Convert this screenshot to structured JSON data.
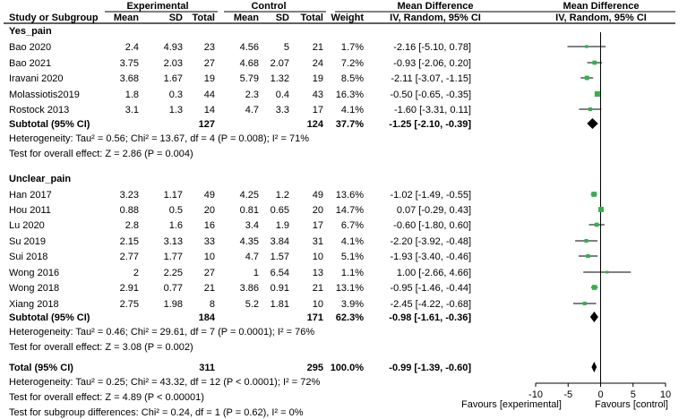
{
  "header": {
    "group1": "Experimental",
    "group2": "Control",
    "md_title": "Mean Difference",
    "md_title2": "Mean Difference",
    "cols": {
      "study": "Study or Subgroup",
      "mean1": "Mean",
      "sd1": "SD",
      "total1": "Total",
      "mean2": "Mean",
      "sd2": "SD",
      "total2": "Total",
      "weight": "Weight",
      "method1": "IV, Random, 95% CI",
      "method2": "IV, Random, 95% CI"
    }
  },
  "subgroups": [
    {
      "name": "Yes_pain",
      "studies": [
        {
          "study": "Bao 2020",
          "m1": "2.4",
          "sd1": "4.93",
          "n1": "23",
          "m2": "4.56",
          "sd2": "5",
          "n2": "21",
          "weight": "1.7%",
          "ci": "-2.16 [-5.10, 0.78]"
        },
        {
          "study": "Bao 2021",
          "m1": "3.75",
          "sd1": "2.03",
          "n1": "27",
          "m2": "4.68",
          "sd2": "2.07",
          "n2": "24",
          "weight": "7.2%",
          "ci": "-0.93 [-2.06, 0.20]"
        },
        {
          "study": "Iravani 2020",
          "m1": "3.68",
          "sd1": "1.67",
          "n1": "19",
          "m2": "5.79",
          "sd2": "1.32",
          "n2": "19",
          "weight": "8.5%",
          "ci": "-2.11 [-3.07, -1.15]"
        },
        {
          "study": "Molassiotis2019",
          "m1": "1.8",
          "sd1": "0.3",
          "n1": "44",
          "m2": "2.3",
          "sd2": "0.4",
          "n2": "43",
          "weight": "16.3%",
          "ci": "-0.50 [-0.65, -0.35]"
        },
        {
          "study": "Rostock 2013",
          "m1": "3.1",
          "sd1": "1.3",
          "n1": "14",
          "m2": "4.7",
          "sd2": "3.3",
          "n2": "17",
          "weight": "4.1%",
          "ci": "-1.60 [-3.31, 0.11]"
        }
      ],
      "subtotal": {
        "label": "Subtotal (95% CI)",
        "n1": "127",
        "n2": "124",
        "weight": "37.7%",
        "ci": "-1.25 [-2.10, -0.39]"
      },
      "heterogeneity": "Heterogeneity: Tau² = 0.56; Chi² = 13.67, df = 4 (P = 0.008); I² = 71%",
      "overall": "Test for overall effect: Z = 2.86 (P = 0.004)"
    },
    {
      "name": "Unclear_pain",
      "studies": [
        {
          "study": "Han 2017",
          "m1": "3.23",
          "sd1": "1.17",
          "n1": "49",
          "m2": "4.25",
          "sd2": "1.2",
          "n2": "49",
          "weight": "13.6%",
          "ci": "-1.02 [-1.49, -0.55]"
        },
        {
          "study": "Hou 2011",
          "m1": "0.88",
          "sd1": "0.5",
          "n1": "20",
          "m2": "0.81",
          "sd2": "0.65",
          "n2": "20",
          "weight": "14.7%",
          "ci": "0.07 [-0.29, 0.43]"
        },
        {
          "study": "Lu 2020",
          "m1": "2.8",
          "sd1": "1.6",
          "n1": "16",
          "m2": "3.4",
          "sd2": "1.9",
          "n2": "17",
          "weight": "6.7%",
          "ci": "-0.60 [-1.80, 0.60]"
        },
        {
          "study": "Su 2019",
          "m1": "2.15",
          "sd1": "3.13",
          "n1": "33",
          "m2": "4.35",
          "sd2": "3.84",
          "n2": "31",
          "weight": "4.1%",
          "ci": "-2.20 [-3.92, -0.48]"
        },
        {
          "study": "Sui 2018",
          "m1": "2.77",
          "sd1": "1.77",
          "n1": "10",
          "m2": "4.7",
          "sd2": "1.57",
          "n2": "10",
          "weight": "5.1%",
          "ci": "-1.93 [-3.40, -0.46]"
        },
        {
          "study": "Wong 2016",
          "m1": "2",
          "sd1": "2.25",
          "n1": "27",
          "m2": "1",
          "sd2": "6.54",
          "n2": "13",
          "weight": "1.1%",
          "ci": "1.00 [-2.66, 4.66]"
        },
        {
          "study": "Wong 2018",
          "m1": "2.91",
          "sd1": "0.77",
          "n1": "21",
          "m2": "3.86",
          "sd2": "0.91",
          "n2": "21",
          "weight": "13.1%",
          "ci": "-0.95 [-1.46, -0.44]"
        },
        {
          "study": "Xiang 2018",
          "m1": "2.75",
          "sd1": "1.98",
          "n1": "8",
          "m2": "5.2",
          "sd2": "1.81",
          "n2": "10",
          "weight": "3.9%",
          "ci": "-2.45 [-4.22, -0.68]"
        }
      ],
      "subtotal": {
        "label": "Subtotal (95% CI)",
        "n1": "184",
        "n2": "171",
        "weight": "62.3%",
        "ci": "-0.98 [-1.61, -0.36]"
      },
      "heterogeneity": "Heterogeneity: Tau² = 0.46; Chi² = 29.61, df = 7 (P = 0.0001); I² = 76%",
      "overall": "Test for overall effect: Z = 3.08 (P = 0.002)"
    }
  ],
  "total": {
    "label": "Total (95% CI)",
    "n1": "311",
    "n2": "295",
    "weight": "100.0%",
    "ci": "-0.99 [-1.39, -0.60]",
    "heterogeneity": "Heterogeneity: Tau² = 0.25; Chi² = 43.32, df = 12 (P < 0.0001); I² = 72%",
    "overall": "Test for overall effect: Z = 4.89 (P < 0.00001)",
    "subgroup_diff": "Test for subgroup differences: Chi² = 0.24, df = 1 (P = 0.62), I² = 0%"
  },
  "axis": {
    "ticks": [
      "-10",
      "-5",
      "0",
      "5",
      "10"
    ],
    "left_label": "Favours [experimental]",
    "right_label": "Favours [control]"
  },
  "colors": {
    "square": "#2db34a",
    "diamond": "#000000",
    "text": "#000000",
    "rule": "#000000"
  },
  "chart_data": {
    "type": "forest",
    "xlim": [
      -10,
      10
    ],
    "xticks": [
      -10,
      -5,
      0,
      5,
      10
    ],
    "reference_line": 0,
    "studies": [
      {
        "name": "Bao 2020",
        "group": "Yes_pain",
        "md": -2.16,
        "lo": -5.1,
        "hi": 0.78,
        "weight": 1.7
      },
      {
        "name": "Bao 2021",
        "group": "Yes_pain",
        "md": -0.93,
        "lo": -2.06,
        "hi": 0.2,
        "weight": 7.2
      },
      {
        "name": "Iravani 2020",
        "group": "Yes_pain",
        "md": -2.11,
        "lo": -3.07,
        "hi": -1.15,
        "weight": 8.5
      },
      {
        "name": "Molassiotis2019",
        "group": "Yes_pain",
        "md": -0.5,
        "lo": -0.65,
        "hi": -0.35,
        "weight": 16.3
      },
      {
        "name": "Rostock 2013",
        "group": "Yes_pain",
        "md": -1.6,
        "lo": -3.31,
        "hi": 0.11,
        "weight": 4.1
      },
      {
        "name": "Han 2017",
        "group": "Unclear_pain",
        "md": -1.02,
        "lo": -1.49,
        "hi": -0.55,
        "weight": 13.6
      },
      {
        "name": "Hou 2011",
        "group": "Unclear_pain",
        "md": 0.07,
        "lo": -0.29,
        "hi": 0.43,
        "weight": 14.7
      },
      {
        "name": "Lu 2020",
        "group": "Unclear_pain",
        "md": -0.6,
        "lo": -1.8,
        "hi": 0.6,
        "weight": 6.7
      },
      {
        "name": "Su 2019",
        "group": "Unclear_pain",
        "md": -2.2,
        "lo": -3.92,
        "hi": -0.48,
        "weight": 4.1
      },
      {
        "name": "Sui 2018",
        "group": "Unclear_pain",
        "md": -1.93,
        "lo": -3.4,
        "hi": -0.46,
        "weight": 5.1
      },
      {
        "name": "Wong 2016",
        "group": "Unclear_pain",
        "md": 1.0,
        "lo": -2.66,
        "hi": 4.66,
        "weight": 1.1
      },
      {
        "name": "Wong 2018",
        "group": "Unclear_pain",
        "md": -0.95,
        "lo": -1.46,
        "hi": -0.44,
        "weight": 13.1
      },
      {
        "name": "Xiang 2018",
        "group": "Unclear_pain",
        "md": -2.45,
        "lo": -4.22,
        "hi": -0.68,
        "weight": 3.9
      }
    ],
    "pooled": [
      {
        "name": "Subtotal Yes_pain",
        "md": -1.25,
        "lo": -2.1,
        "hi": -0.39
      },
      {
        "name": "Subtotal Unclear_pain",
        "md": -0.98,
        "lo": -1.61,
        "hi": -0.36
      },
      {
        "name": "Total",
        "md": -0.99,
        "lo": -1.39,
        "hi": -0.6
      }
    ]
  }
}
